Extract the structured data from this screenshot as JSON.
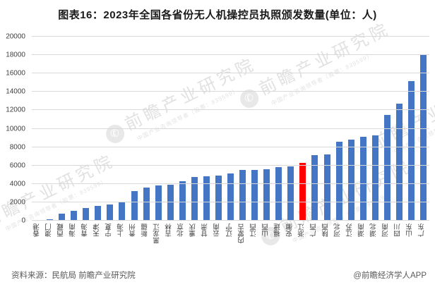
{
  "title": "图表16：2023年全国各省份无人机操控员执照颁发数量(单位：人)",
  "chart_data": {
    "type": "bar",
    "title": "图表16：2023年全国各省份无人机操控员执照颁发数量(单位：人)",
    "unit": "人",
    "categories": [
      "香港",
      "澳门",
      "西藏",
      "海南",
      "青海",
      "天津",
      "宁夏",
      "上海",
      "贵州",
      "新疆",
      "黑龙江",
      "吉林",
      "北京",
      "重庆",
      "甘肃",
      "云南",
      "辽宁",
      "内蒙古",
      "江西",
      "山西",
      "福建",
      "安徽",
      "浙江",
      "广西",
      "陕西",
      "河北",
      "江苏",
      "湖南",
      "湖北",
      "河南",
      "四川",
      "山东",
      "广东"
    ],
    "values": [
      80,
      150,
      800,
      1100,
      1400,
      1600,
      1800,
      2000,
      3200,
      3600,
      3800,
      3900,
      4300,
      4750,
      4800,
      4900,
      5100,
      5500,
      5550,
      5600,
      5800,
      5900,
      6300,
      7100,
      7200,
      8600,
      8800,
      9100,
      9300,
      11500,
      12700,
      15200,
      18000
    ],
    "highlight_index": 22,
    "highlight_label": "浙江",
    "bar_color": "#4576c5",
    "highlight_color": "#fe0000",
    "ylim": [
      0,
      20000
    ],
    "ytick_step": 2000,
    "yticks": [
      "0",
      "2000",
      "4000",
      "6000",
      "8000",
      "10000",
      "12000",
      "14000",
      "16000",
      "18000",
      "20000"
    ],
    "grid": true,
    "legend": "none",
    "xlabel": "",
    "ylabel": ""
  },
  "watermark": {
    "main": "前瞻产业研究院",
    "sub": "中国产业咨询领导者（股票：839599）",
    "logo_glyph": "✆"
  },
  "footer": {
    "source": "资料来源：民航局 前瞻产业研究院",
    "credit": "@前瞻经济学人APP"
  }
}
